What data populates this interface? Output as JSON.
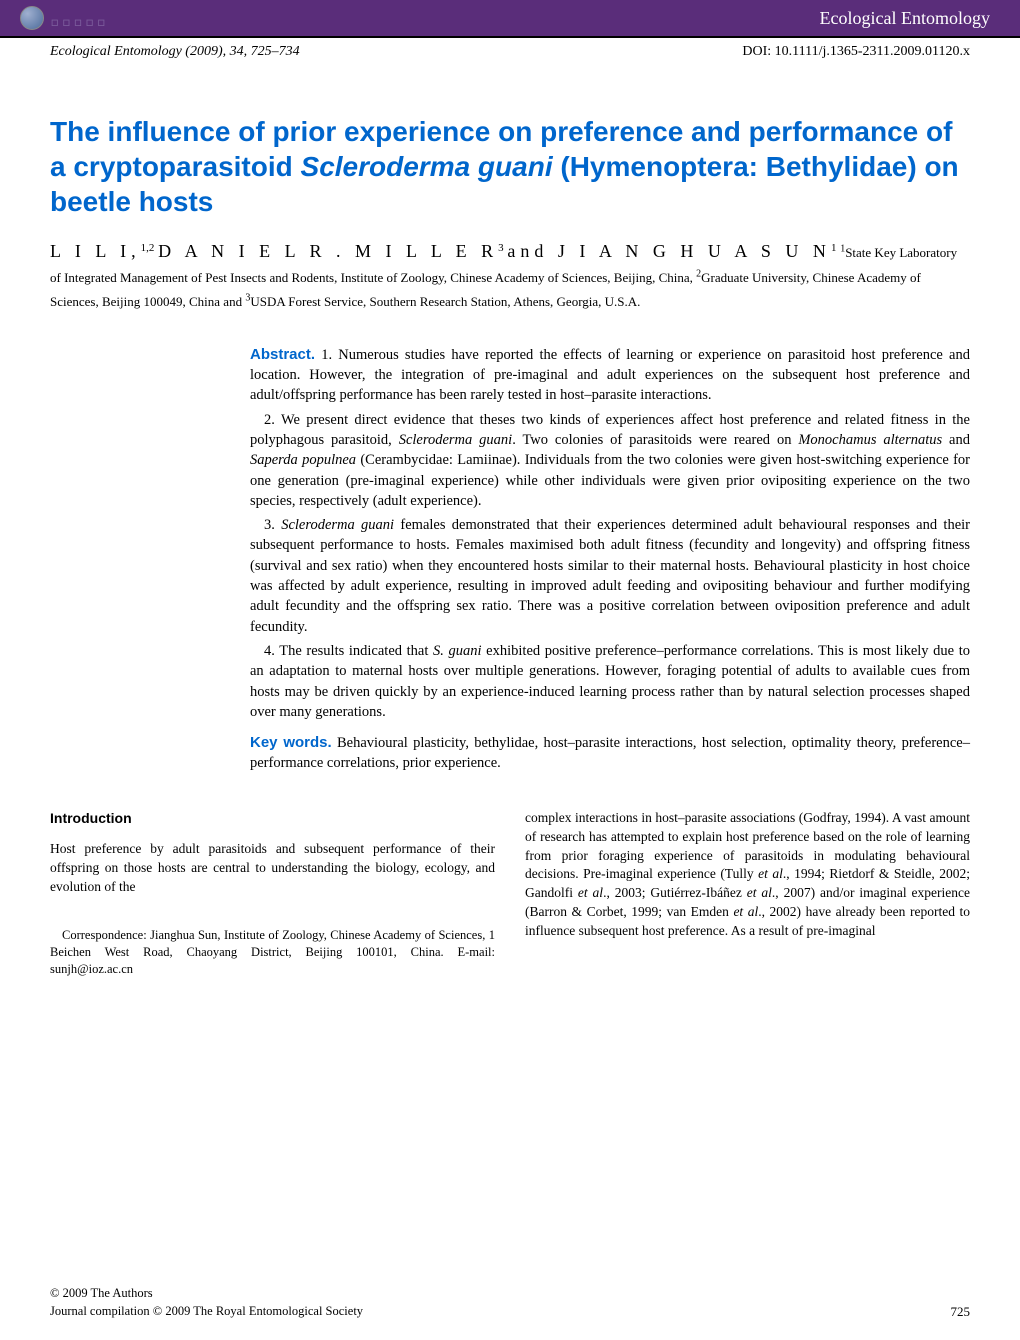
{
  "topbar": {
    "journal_name": "Ecological Entomology",
    "bg_color": "#5a2d7a",
    "text_color": "#ffffff"
  },
  "header": {
    "citation": "Ecological Entomology (2009), 34, 725–734",
    "doi": "DOI: 10.1111/j.1365-2311.2009.01120.x"
  },
  "title": "The influence of prior experience on preference and performance of a cryptoparasitoid Scleroderma guani (Hymenoptera: Bethylidae) on beetle hosts",
  "title_color": "#0066cc",
  "authors": {
    "a1_name": "L I   L I,",
    "a1_sup": "1,2",
    "a2_name": " D A N I E L   R .   M I L L E R",
    "a2_sup": "3",
    "a3_name": " and  J I A N G H U A   S U N",
    "a3_sup": "1"
  },
  "affiliations": {
    "a1": "State Key Laboratory of Integrated Management of Pest Insects and Rodents, Institute of Zoology, Chinese Academy of Sciences, Beijing, China, ",
    "a2": "Graduate University, Chinese Academy of Sciences, Beijing 100049, China and ",
    "a3": "USDA Forest Service, Southern Research Station, Athens, Georgia, U.S.A."
  },
  "abstract": {
    "label": "Abstract.",
    "p1": " 1. Numerous studies have reported the effects of learning or experience on parasitoid host preference and location. However, the integration of pre-imaginal and adult experiences on the subsequent host preference and adult/offspring performance has been rarely tested in host–parasite interactions.",
    "p2a": "2. We present direct evidence that theses two kinds of experiences affect host preference and related fitness in the polyphagous parasitoid, ",
    "p2b": "Scleroderma guani",
    "p2c": ". Two colonies of parasitoids were reared on ",
    "p2d": "Monochamus alternatus",
    "p2e": " and ",
    "p2f": "Saperda populnea",
    "p2g": " (Cerambycidae: Lamiinae). Individuals from the two colonies were given host-switching experience for one generation (pre-imaginal experience) while other individuals were given prior ovipositing experience on the two species, respectively (adult experience).",
    "p3a": "3. ",
    "p3b": "Scleroderma guani",
    "p3c": " females demonstrated that their experiences determined adult behavioural responses and their subsequent performance to hosts. Females maximised both adult fitness (fecundity and longevity) and offspring fitness (survival and sex ratio) when they encountered hosts similar to their maternal hosts. Behavioural plasticity in host choice was affected by adult experience, resulting in improved adult feeding and ovipositing behaviour and further modifying adult fecundity and the offspring sex ratio. There was a positive correlation between oviposition preference and adult fecundity.",
    "p4a": "4. The results indicated that ",
    "p4b": "S. guani",
    "p4c": " exhibited positive preference–performance correlations. This is most likely due to an adaptation to maternal hosts over multiple generations. However, foraging potential of adults to available cues from hosts may be driven quickly by an experience-induced learning process rather than by natural selection processes shaped over many generations."
  },
  "keywords": {
    "label": "Key words.",
    "text": " Behavioural plasticity, bethylidae, host–parasite interactions, host selection, optimality theory, preference–performance correlations, prior experience."
  },
  "body": {
    "intro_heading": "Introduction",
    "intro_para": "Host preference by adult parasitoids and subsequent performance of their offspring on those hosts are central to understanding the biology, ecology, and evolution of the",
    "col2a": "complex interactions in host–parasite associations (Godfray, 1994). A vast amount of research has attempted to explain host preference based on the role of learning from prior foraging experience of parasitoids in modulating behavioural decisions. Pre-imaginal experience (Tully ",
    "col2b": "et al",
    "col2c": "., 1994; Rietdorf & Steidle, 2002; Gandolfi ",
    "col2d": "et al",
    "col2e": "., 2003; Gutiérrez-Ibáñez ",
    "col2f": "et al",
    "col2g": "., 2007) and/or imaginal experience (Barron & Corbet, 1999; van Emden ",
    "col2h": "et al",
    "col2i": "., 2002) have already been reported to influence subsequent host preference. As a result of pre-imaginal"
  },
  "correspondence": "Correspondence: Jianghua Sun, Institute of Zoology, Chinese Academy of Sciences, 1 Beichen West Road, Chaoyang District, Beijing 100101, China. E-mail: sunjh@ioz.ac.cn",
  "footer": {
    "copyright": "© 2009 The Authors",
    "compilation": "Journal compilation © 2009 The Royal Entomological Society",
    "page": "725"
  }
}
